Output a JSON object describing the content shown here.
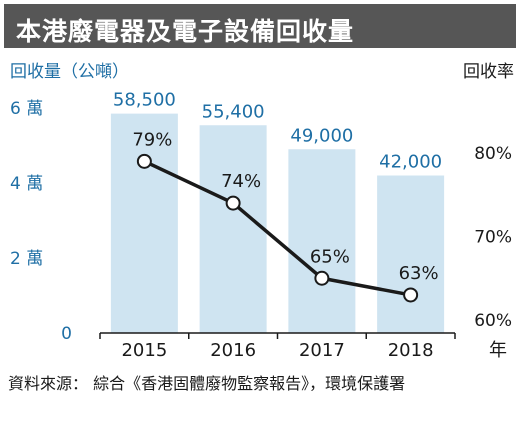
{
  "title": "本港廢電器及電子設備回收量",
  "source": "資料來源： 綜合《香港固體廢物監察報告》，環境保護署",
  "colors": {
    "accent": "#1f6fa5",
    "bar": "#cfe4f1",
    "line": "#1a1a1a",
    "title_bg": "#565656"
  },
  "chart_data": {
    "type": "bar",
    "categories": [
      "2015",
      "2016",
      "2017",
      "2018"
    ],
    "x_unit": "年",
    "series": [
      {
        "values": [
          58500,
          55400,
          49000,
          42000
        ],
        "value_labels": [
          "58,500",
          "55,400",
          "49,000",
          "42,000"
        ],
        "chart": "bar",
        "axis": "left"
      },
      {
        "values": [
          79,
          74,
          65,
          63
        ],
        "value_labels": [
          "79%",
          "74%",
          "65%",
          "63%"
        ],
        "chart": "line",
        "axis": "right"
      }
    ],
    "ylabel": "回收量（公噸）",
    "ylim": [
      0,
      60000
    ],
    "yticks": [
      0,
      20000,
      40000,
      60000
    ],
    "ytick_labels": [
      "0",
      "2 萬",
      "4 萬",
      "6 萬"
    ],
    "y2label": "回收率",
    "y2lim": [
      60,
      84
    ],
    "y2ticks": [
      60,
      70,
      80
    ],
    "y2tick_labels": [
      "60%",
      "70%",
      "80%"
    ],
    "grid": false
  }
}
